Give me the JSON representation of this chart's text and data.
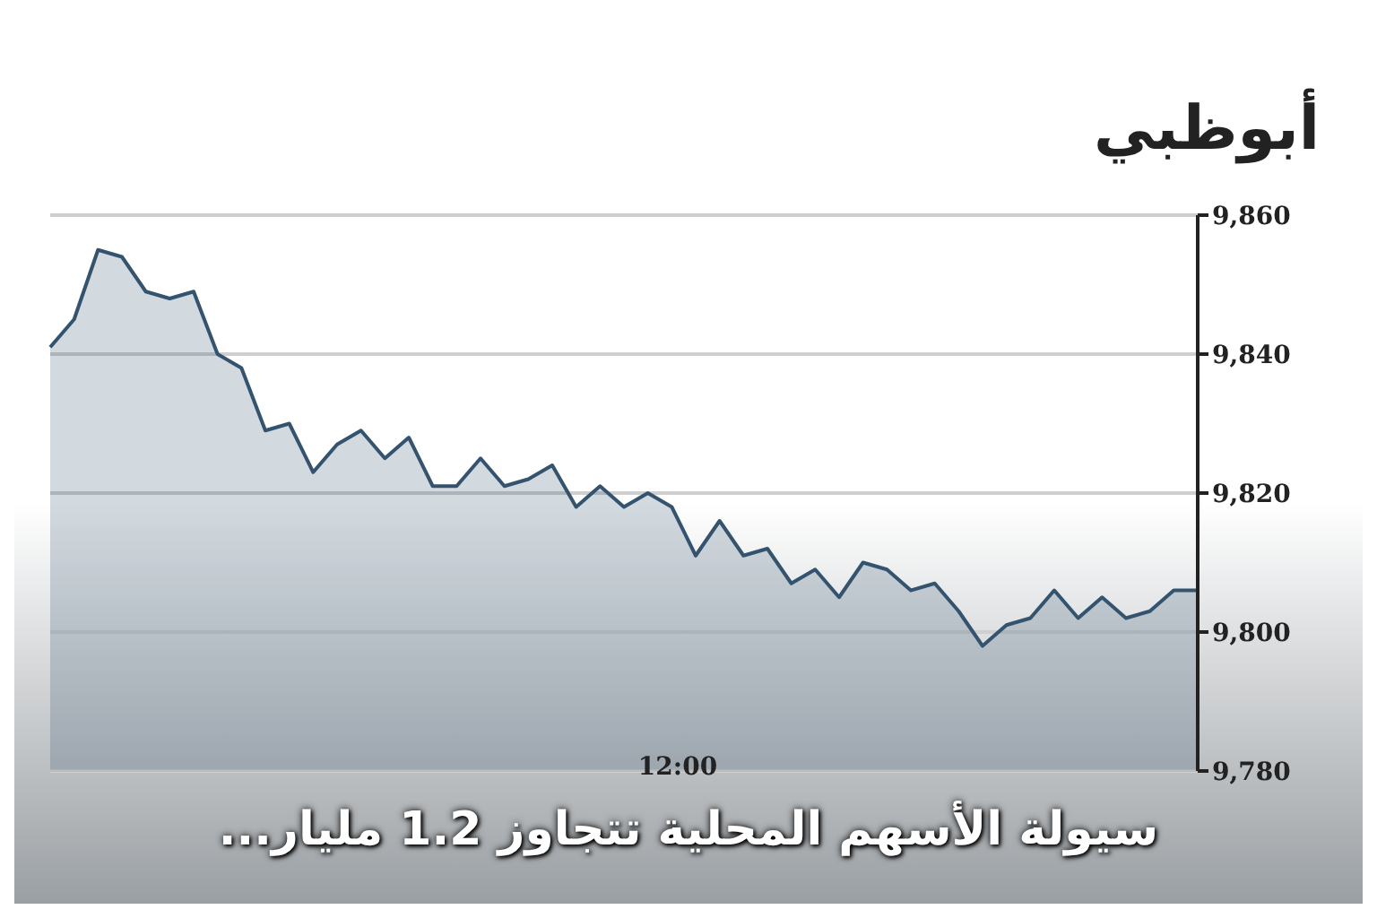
{
  "chart_data": {
    "type": "area",
    "title": "أبوظبي",
    "annotations": [
      "سيولة الأسهم المحلية تتجاوز 1.2 مليار...",
      "12:00"
    ],
    "categories": [
      null,
      null,
      null,
      null,
      null,
      null,
      null,
      null,
      null,
      null,
      null,
      null,
      null,
      null,
      null,
      null,
      null,
      null,
      null,
      null,
      null,
      null,
      null,
      null,
      null,
      null,
      null,
      null,
      null,
      null,
      null,
      null,
      null,
      null,
      null,
      null,
      null,
      null,
      null,
      null,
      null,
      null,
      null,
      null,
      null,
      null,
      null,
      null,
      null
    ],
    "series": [
      {
        "color": "#34536e",
        "values": [
          9841,
          9845,
          9855,
          9854,
          9849,
          9848,
          9849,
          9840,
          9838,
          9829,
          9830,
          9823,
          9827,
          9829,
          9825,
          9828,
          9821,
          9821,
          9825,
          9821,
          9822,
          9824,
          9818,
          9821,
          9818,
          9820,
          9818,
          9811,
          9816,
          9811,
          9812,
          9807,
          9809,
          9805,
          9810,
          9809,
          9806,
          9807,
          9803,
          9798,
          9801,
          9802,
          9806,
          9802,
          9805,
          9802,
          9803,
          9806,
          9806
        ]
      }
    ],
    "ylim": [
      9780,
      9860
    ],
    "yticks": [
      {
        "value": 9780,
        "label": "9,780"
      },
      {
        "value": 9800,
        "label": "9,800"
      },
      {
        "value": 9820,
        "label": "9,820"
      },
      {
        "value": 9840,
        "label": "9,840"
      },
      {
        "value": 9860,
        "label": "9,860"
      }
    ],
    "grid": "y",
    "marker": "none",
    "line_style": "solid"
  }
}
